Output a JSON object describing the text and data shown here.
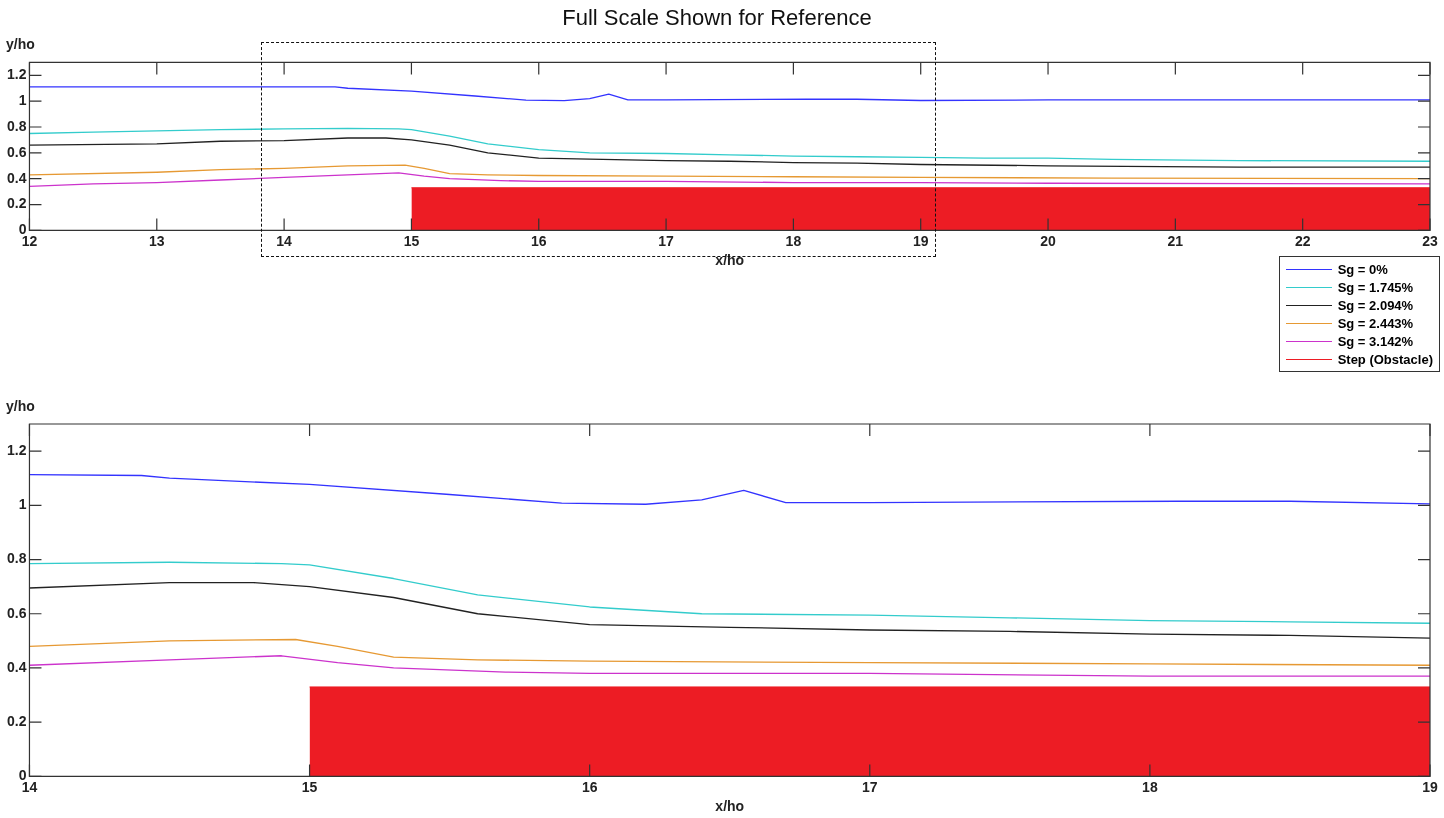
{
  "chart_data": [
    {
      "type": "line",
      "title": "Full Scale Shown for Reference",
      "xlabel": "x/ho",
      "ylabel": "y/ho",
      "xlim": [
        12,
        23
      ],
      "ylim": [
        0,
        1.3
      ],
      "xticks": [
        12,
        13,
        14,
        15,
        16,
        17,
        18,
        19,
        20,
        21,
        22,
        23
      ],
      "yticks": [
        0,
        0.2,
        0.4,
        0.6,
        0.8,
        1,
        1.2
      ],
      "grid": false,
      "legend": "bottom right",
      "marker": "none",
      "line_style": "solid",
      "series": [
        {
          "name": "Sg = 0%",
          "color": "#3333ff",
          "x": [
            12,
            14.4,
            14.5,
            15,
            15.5,
            15.9,
            16.2,
            16.4,
            16.55,
            16.7,
            17,
            18.1,
            18.5,
            19,
            20,
            23
          ],
          "values": [
            1.11,
            1.11,
            1.1,
            1.077,
            1.04,
            1.008,
            1.004,
            1.02,
            1.055,
            1.01,
            1.01,
            1.015,
            1.015,
            1.005,
            1.01,
            1.01
          ]
        },
        {
          "name": "Sg = 1.745%",
          "color": "#33cccc",
          "x": [
            12,
            12.5,
            13,
            13.5,
            14,
            14.5,
            14.9,
            15,
            15.3,
            15.6,
            16,
            16.4,
            17,
            17.5,
            18,
            18.5,
            19,
            19.5,
            20,
            20.5,
            21.5,
            23
          ],
          "values": [
            0.75,
            0.76,
            0.77,
            0.78,
            0.785,
            0.79,
            0.785,
            0.78,
            0.73,
            0.67,
            0.625,
            0.6,
            0.595,
            0.585,
            0.575,
            0.57,
            0.565,
            0.56,
            0.56,
            0.55,
            0.54,
            0.535
          ]
        },
        {
          "name": "Sg = 2.094%",
          "color": "#222222",
          "x": [
            12,
            13,
            13.5,
            14,
            14.5,
            14.8,
            15,
            15.3,
            15.6,
            16,
            16.5,
            17,
            17.5,
            18,
            18.5,
            19,
            20,
            21.5,
            23
          ],
          "values": [
            0.66,
            0.67,
            0.69,
            0.695,
            0.715,
            0.715,
            0.7,
            0.66,
            0.6,
            0.56,
            0.55,
            0.54,
            0.535,
            0.525,
            0.52,
            0.51,
            0.5,
            0.49,
            0.49
          ]
        },
        {
          "name": "Sg = 2.443%",
          "color": "#e69933",
          "x": [
            12,
            13,
            13.5,
            14,
            14.5,
            14.95,
            15.1,
            15.3,
            15.6,
            16,
            17,
            18,
            19,
            20.5,
            23
          ],
          "values": [
            0.43,
            0.45,
            0.47,
            0.48,
            0.5,
            0.505,
            0.48,
            0.44,
            0.43,
            0.425,
            0.42,
            0.415,
            0.41,
            0.405,
            0.4
          ]
        },
        {
          "name": "Sg = 3.142%",
          "color": "#cc33cc",
          "x": [
            12,
            12.5,
            13,
            13.5,
            14,
            14.5,
            14.9,
            15.1,
            15.3,
            15.7,
            16,
            17,
            18,
            19,
            20,
            23
          ],
          "values": [
            0.34,
            0.36,
            0.37,
            0.39,
            0.41,
            0.43,
            0.445,
            0.42,
            0.4,
            0.385,
            0.38,
            0.38,
            0.37,
            0.37,
            0.365,
            0.36
          ]
        },
        {
          "name": "Step (Obstacle)",
          "type": "area",
          "color": "#ed1c24",
          "x": [
            15,
            23
          ],
          "values": [
            0.33,
            0.33
          ]
        }
      ]
    },
    {
      "type": "line",
      "xlabel": "x/ho",
      "ylabel": "y/ho",
      "xlim": [
        14,
        19
      ],
      "ylim": [
        0,
        1.3
      ],
      "xticks": [
        14,
        15,
        16,
        17,
        18,
        19
      ],
      "yticks": [
        0,
        0.2,
        0.4,
        0.6,
        0.8,
        1,
        1.2
      ],
      "grid": false,
      "marker": "none",
      "line_style": "solid",
      "series": [
        {
          "color": "#3333ff",
          "x": [
            14,
            14.4,
            14.5,
            15,
            15.5,
            15.9,
            16.2,
            16.4,
            16.55,
            16.7,
            17,
            18.1,
            18.5,
            19
          ],
          "values": [
            1.113,
            1.11,
            1.1,
            1.077,
            1.04,
            1.008,
            1.004,
            1.02,
            1.055,
            1.01,
            1.01,
            1.015,
            1.015,
            1.005
          ]
        },
        {
          "color": "#33cccc",
          "x": [
            14,
            14.5,
            14.9,
            15,
            15.3,
            15.6,
            16,
            16.4,
            17,
            17.5,
            18,
            18.5,
            19
          ],
          "values": [
            0.785,
            0.79,
            0.785,
            0.78,
            0.73,
            0.67,
            0.625,
            0.6,
            0.595,
            0.585,
            0.575,
            0.57,
            0.565
          ]
        },
        {
          "color": "#222222",
          "x": [
            14,
            14.5,
            14.8,
            15,
            15.3,
            15.6,
            16,
            16.5,
            17,
            17.5,
            18,
            18.5,
            19
          ],
          "values": [
            0.695,
            0.715,
            0.715,
            0.7,
            0.66,
            0.6,
            0.56,
            0.55,
            0.54,
            0.535,
            0.525,
            0.52,
            0.51
          ]
        },
        {
          "color": "#e69933",
          "x": [
            14,
            14.5,
            14.95,
            15.1,
            15.3,
            15.6,
            16,
            17,
            18,
            19
          ],
          "values": [
            0.48,
            0.5,
            0.505,
            0.48,
            0.44,
            0.43,
            0.425,
            0.42,
            0.415,
            0.41
          ]
        },
        {
          "color": "#cc33cc",
          "x": [
            14,
            14.5,
            14.9,
            15.1,
            15.3,
            15.7,
            16,
            17,
            18,
            19
          ],
          "values": [
            0.41,
            0.43,
            0.445,
            0.42,
            0.4,
            0.385,
            0.38,
            0.38,
            0.37,
            0.37
          ]
        },
        {
          "type": "area",
          "color": "#ed1c24",
          "x": [
            15,
            19
          ],
          "values": [
            0.33,
            0.33
          ]
        }
      ]
    }
  ]
}
